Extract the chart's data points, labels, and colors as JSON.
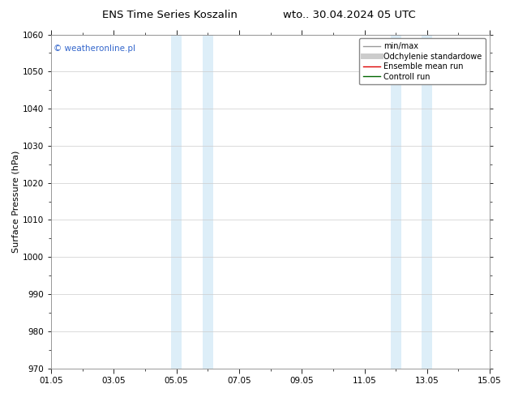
{
  "title_left": "ENS Time Series Koszalin",
  "title_right": "wto.. 30.04.2024 05 UTC",
  "ylabel": "Surface Pressure (hPa)",
  "ylim": [
    970,
    1060
  ],
  "yticks": [
    970,
    980,
    990,
    1000,
    1010,
    1020,
    1030,
    1040,
    1050,
    1060
  ],
  "xlim": [
    0,
    14
  ],
  "xtick_labels": [
    "01.05",
    "03.05",
    "05.05",
    "07.05",
    "09.05",
    "11.05",
    "13.05",
    "15.05"
  ],
  "xtick_positions": [
    0,
    2,
    4,
    6,
    8,
    10,
    12,
    14
  ],
  "shaded_bands": [
    {
      "x_start": 3.83,
      "x_end": 4.17,
      "color": "#ddeef8"
    },
    {
      "x_start": 4.83,
      "x_end": 5.17,
      "color": "#ddeef8"
    },
    {
      "x_start": 10.83,
      "x_end": 11.17,
      "color": "#ddeef8"
    },
    {
      "x_start": 11.83,
      "x_end": 12.17,
      "color": "#ddeef8"
    }
  ],
  "watermark": "© weatheronline.pl",
  "watermark_color": "#3366cc",
  "bg_color": "#ffffff",
  "plot_bg_color": "#ffffff",
  "legend_items": [
    {
      "label": "min/max",
      "color": "#999999",
      "lw": 1.0,
      "style": "-"
    },
    {
      "label": "Odchylenie standardowe",
      "color": "#cccccc",
      "lw": 5,
      "style": "-"
    },
    {
      "label": "Ensemble mean run",
      "color": "#dd0000",
      "lw": 1.0,
      "style": "-"
    },
    {
      "label": "Controll run",
      "color": "#006600",
      "lw": 1.0,
      "style": "-"
    }
  ],
  "title_fontsize": 9.5,
  "tick_fontsize": 7.5,
  "ylabel_fontsize": 8,
  "watermark_fontsize": 7.5,
  "legend_fontsize": 7,
  "grid_color": "#cccccc",
  "border_color": "#888888"
}
